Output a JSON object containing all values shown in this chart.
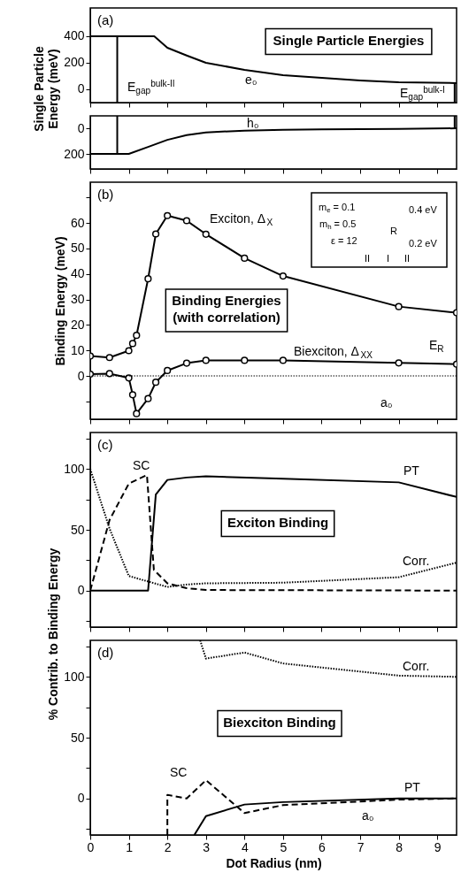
{
  "chart_data": [
    {
      "type": "line",
      "title": "Single Particle Energies",
      "ylabel": "Single Particle\nEnergy (meV)",
      "xlim": [
        0,
        9.5
      ],
      "xticks": [
        0,
        1,
        2,
        3,
        4,
        5,
        6,
        7,
        8,
        9
      ],
      "ylim": [
        -100,
        613
      ],
      "yticks": [
        0,
        200,
        400
      ],
      "tick_labels": "y",
      "series": [
        {
          "color": "#000000",
          "x": [
            0,
            1.0,
            1.66,
            2,
            2.5,
            3,
            4,
            5,
            6,
            7,
            8,
            9.5
          ],
          "values": [
            400,
            400,
            400,
            313,
            255,
            200,
            147,
            107,
            87,
            67,
            53,
            47
          ]
        },
        {
          "color": "#000000",
          "x": [
            0.7,
            0.7
          ],
          "values": [
            400,
            -100
          ]
        },
        {
          "color": "#000000",
          "x": [
            9.45,
            9.45
          ],
          "values": [
            47,
            -100
          ]
        }
      ],
      "annotations": [
        "(a)",
        "e₀",
        "E$_{gap}$$^{bulk-II}$",
        "E$_{gap}$$^{bulk-I}$"
      ]
    },
    {
      "type": "line",
      "xlim": [
        0,
        9.5
      ],
      "xticks": [
        0,
        1,
        2,
        3,
        4,
        5,
        6,
        7,
        8,
        9
      ],
      "ylim": [
        317,
        -97
      ],
      "yticks": [
        0,
        200
      ],
      "tick_labels": "y",
      "series": [
        {
          "color": "#000000",
          "x": [
            0,
            1.0,
            1.5,
            2,
            2.5,
            3,
            4,
            5,
            6,
            8,
            9.5
          ],
          "values": [
            200,
            200,
            145,
            90,
            53,
            32,
            18,
            11,
            9,
            5,
            0
          ]
        },
        {
          "color": "#000000",
          "x": [
            0.7,
            0.7
          ],
          "values": [
            -97,
            200
          ]
        },
        {
          "color": "#000000",
          "x": [
            9.45,
            9.45
          ],
          "values": [
            -97,
            0
          ]
        }
      ],
      "annotations": [
        "h₀"
      ]
    },
    {
      "type": "line",
      "title": "Binding Energies\n(with correlation)",
      "ylabel": "Binding Energy (meV)",
      "xlim": [
        0,
        9.5
      ],
      "xticks": [
        0,
        1,
        2,
        3,
        4,
        5,
        6,
        7,
        8,
        9
      ],
      "ylim": [
        -17,
        76
      ],
      "yticks": [
        {
          "value": -10,
          "label": null
        },
        0,
        10,
        20,
        30,
        40,
        50,
        60,
        {
          "value": 70,
          "label": null
        }
      ],
      "tick_labels": "y",
      "series": [
        {
          "color": "#000000",
          "marker": "circle",
          "x": [
            0,
            0.5,
            1.0,
            1.1,
            1.2,
            1.5,
            1.7,
            2.0,
            2.5,
            3.0,
            4.0,
            5.0,
            8.0,
            9.5
          ],
          "values": [
            7.8,
            7.2,
            9.9,
            12.7,
            15.9,
            38.1,
            55.7,
            62.9,
            60.9,
            55.6,
            46.2,
            39.2,
            27.2,
            24.8
          ]
        },
        {
          "color": "#000000",
          "marker": "circle",
          "x": [
            0,
            0.5,
            1.0,
            1.1,
            1.2,
            1.5,
            1.7,
            2.0,
            2.5,
            3.0,
            4.0,
            5.0,
            8.0,
            9.5
          ],
          "values": [
            0.7,
            0.9,
            -0.8,
            -7.4,
            -14.8,
            -8.9,
            -2.5,
            2.1,
            5.0,
            6.1,
            6.1,
            6.1,
            5.1,
            4.6
          ]
        }
      ],
      "ref_lines": [
        {
          "axis": "y",
          "value": 0,
          "line_style": "dotted"
        }
      ],
      "annotations": [
        "(b)",
        "m$_{e}$ = 0.1",
        "m$_{h}$ = 0.5",
        "ε = 12",
        "0.4 eV",
        "R",
        "0.2 eV",
        "II",
        "I",
        "II",
        "Exciton, Δ$_{X}$",
        "Biexciton, Δ$_{XX}$",
        "E$_{R}$",
        "a₀"
      ]
    },
    {
      "type": "line",
      "title": "Exciton Binding",
      "ylabel": "% Contrib. to Binding Energy",
      "xlim": [
        0,
        9.5
      ],
      "xticks": [
        0,
        1,
        2,
        3,
        4,
        5,
        6,
        7,
        8,
        9
      ],
      "ylim": [
        -30,
        130
      ],
      "yticks": [
        {
          "value": -25,
          "label": null
        },
        0,
        {
          "value": 25,
          "label": null
        },
        50,
        {
          "value": 75,
          "label": null
        },
        100,
        {
          "value": 125,
          "label": null
        }
      ],
      "tick_labels": "y",
      "series": [
        {
          "color": "#000000",
          "line_style": "solid",
          "x": [
            0,
            1,
            1.5,
            1.7,
            2,
            2.5,
            3,
            5,
            8,
            9.5
          ],
          "values": [
            0,
            0,
            0,
            79,
            91,
            93,
            94,
            92,
            89,
            77
          ]
        },
        {
          "color": "#000000",
          "line_style": "dashed",
          "x": [
            0,
            0.5,
            1,
            1.47,
            1.65,
            2,
            2.5,
            3,
            9.5
          ],
          "values": [
            0,
            58,
            88,
            95,
            17,
            6,
            2,
            0.5,
            0
          ]
        },
        {
          "color": "#000000",
          "line_style": "dotted",
          "x": [
            0,
            0.5,
            1,
            2,
            2.5,
            3,
            5,
            8,
            9.5
          ],
          "values": [
            100,
            51,
            12,
            3,
            5,
            6,
            6.5,
            11,
            23
          ]
        }
      ],
      "annotations": [
        "(c)",
        "SC",
        "PT",
        "Corr."
      ]
    },
    {
      "type": "line",
      "title": "Biexciton Binding",
      "xlabel": "Dot Radius (nm)",
      "xlim": [
        0,
        9.5
      ],
      "xticks": [
        0,
        1,
        2,
        3,
        4,
        5,
        6,
        7,
        8,
        9
      ],
      "ylim": [
        -30,
        130
      ],
      "yticks": [
        {
          "value": -25,
          "label": null
        },
        0,
        {
          "value": 25,
          "label": null
        },
        50,
        {
          "value": 75,
          "label": null
        },
        100,
        {
          "value": 125,
          "label": null
        }
      ],
      "series": [
        {
          "color": "#000000",
          "line_style": "solid",
          "x": [
            2.7,
            3,
            4,
            5,
            8,
            9.5
          ],
          "values": [
            -30,
            -14.5,
            -5,
            -3,
            0,
            0
          ]
        },
        {
          "color": "#000000",
          "line_style": "dashed",
          "x": [
            2,
            2,
            2.5,
            3,
            4,
            5,
            8,
            9.5
          ],
          "values": [
            -30,
            3,
            0,
            15,
            -12,
            -5.5,
            -1,
            0
          ]
        },
        {
          "color": "#000000",
          "line_style": "dotted",
          "x": [
            2.85,
            3,
            4,
            5,
            8,
            9.5
          ],
          "values": [
            130,
            115,
            120,
            111,
            101,
            100
          ]
        }
      ],
      "annotations": [
        "(d)",
        "Corr.",
        "SC",
        "PT",
        "a₀"
      ]
    }
  ]
}
